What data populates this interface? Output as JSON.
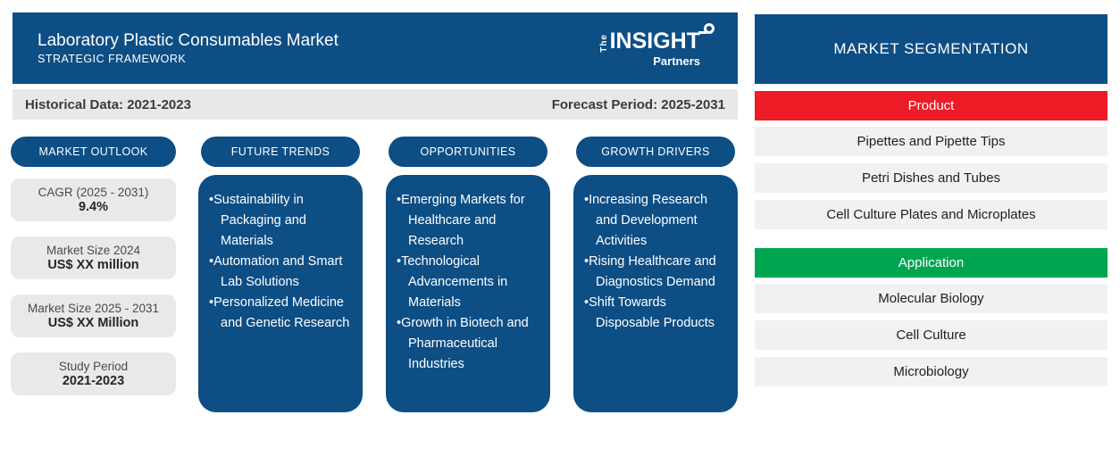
{
  "header": {
    "title": "Laboratory Plastic Consumables Market",
    "subtitle": "STRATEGIC FRAMEWORK",
    "logo": {
      "the": "The",
      "insight": "INSIGHT",
      "partners": "Partners"
    }
  },
  "period_bar": {
    "historical": "Historical Data: 2021-2023",
    "forecast": "Forecast Period: 2025-2031"
  },
  "market_outlook": {
    "title": "MARKET OUTLOOK",
    "stats": [
      {
        "label": "CAGR (2025 - 2031)",
        "value": "9.4%"
      },
      {
        "label": "Market Size 2024",
        "value": "US$ XX million"
      },
      {
        "label": "Market Size 2025 - 2031",
        "value": "US$ XX Million"
      },
      {
        "label": "Study Period",
        "value": "2021-2023"
      }
    ]
  },
  "columns": [
    {
      "title": "FUTURE TRENDS",
      "bullets": [
        "Sustainability in Packaging and Materials",
        "Automation and Smart Lab Solutions",
        "Personalized Medicine and Genetic Research"
      ]
    },
    {
      "title": "OPPORTUNITIES",
      "bullets": [
        "Emerging Markets for Healthcare and Research",
        "Technological Advancements in Materials",
        "Growth in Biotech and Pharmaceutical Industries"
      ]
    },
    {
      "title": "GROWTH DRIVERS",
      "bullets": [
        "Increasing Research and Development Activities",
        "Rising Healthcare and Diagnostics Demand",
        "Shift Towards Disposable Products"
      ]
    }
  ],
  "segmentation": {
    "title": "MARKET SEGMENTATION",
    "groups": [
      {
        "label": "Product",
        "color": "#ed1c26",
        "items": [
          "Pipettes and Pipette Tips",
          "Petri Dishes and Tubes",
          "Cell Culture Plates and Microplates"
        ]
      },
      {
        "label": "Application",
        "color": "#00a551",
        "items": [
          "Molecular Biology",
          "Cell Culture",
          "Microbiology"
        ]
      }
    ]
  },
  "colors": {
    "primary_blue": "#0d4e85",
    "product_red": "#ed1c26",
    "application_green": "#00a551"
  }
}
